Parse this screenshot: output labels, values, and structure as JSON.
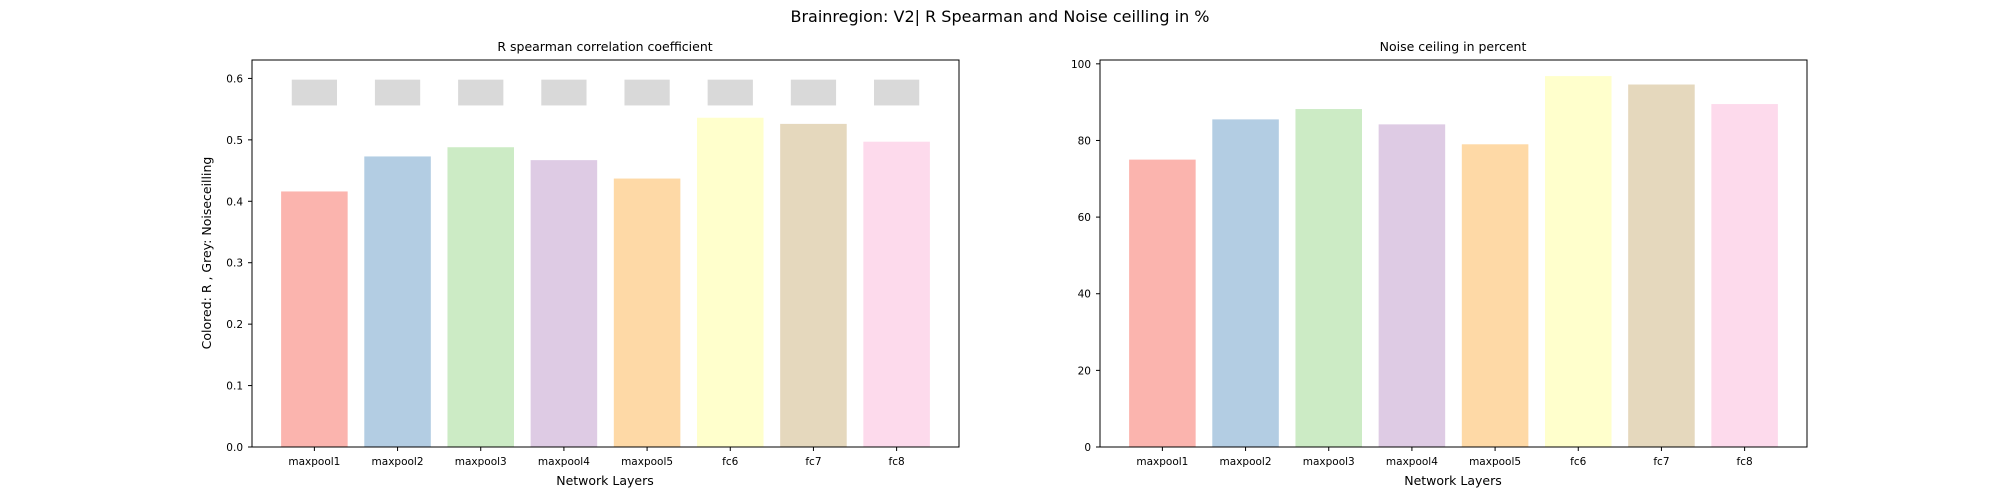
{
  "figure": {
    "title": "Brainregion: V2| R Spearman and Noise ceilling in %"
  },
  "colors": [
    "#fbb4ae",
    "#b3cde3",
    "#ccebc5",
    "#decbe4",
    "#fed9a6",
    "#ffffcc",
    "#e5d8bd",
    "#fddaec"
  ],
  "ceiling_color": "#d9d9d9",
  "chart_data": [
    {
      "type": "bar",
      "title": "R spearman correlation coefficient",
      "xlabel": "Network Layers",
      "ylabel": "Colored: R , Grey: Noiseceilling",
      "categories": [
        "maxpool1",
        "maxpool2",
        "maxpool3",
        "maxpool4",
        "maxpool5",
        "fc6",
        "fc7",
        "fc8"
      ],
      "series": [
        {
          "values": [
            0.416,
            0.473,
            0.488,
            0.467,
            0.437,
            0.536,
            0.526,
            0.497
          ]
        }
      ],
      "noise_ceiling": {
        "lower": [
          0.556,
          0.556,
          0.556,
          0.556,
          0.556,
          0.556,
          0.556,
          0.556
        ],
        "upper": [
          0.598,
          0.598,
          0.598,
          0.598,
          0.598,
          0.598,
          0.598,
          0.598
        ]
      },
      "ylim": [
        0,
        0.63
      ],
      "yticks": [
        "0.0",
        "0.1",
        "0.2",
        "0.3",
        "0.4",
        "0.5",
        "0.6"
      ],
      "grid": false
    },
    {
      "type": "bar",
      "title": "Noise ceiling in percent",
      "xlabel": "Network Layers",
      "ylabel": "",
      "categories": [
        "maxpool1",
        "maxpool2",
        "maxpool3",
        "maxpool4",
        "maxpool5",
        "fc6",
        "fc7",
        "fc8"
      ],
      "series": [
        {
          "values": [
            75.0,
            85.5,
            88.2,
            84.2,
            79.0,
            96.8,
            94.6,
            89.5
          ]
        }
      ],
      "ylim": [
        0,
        101
      ],
      "yticks": [
        "0",
        "20",
        "40",
        "60",
        "80",
        "100"
      ],
      "grid": false
    }
  ]
}
